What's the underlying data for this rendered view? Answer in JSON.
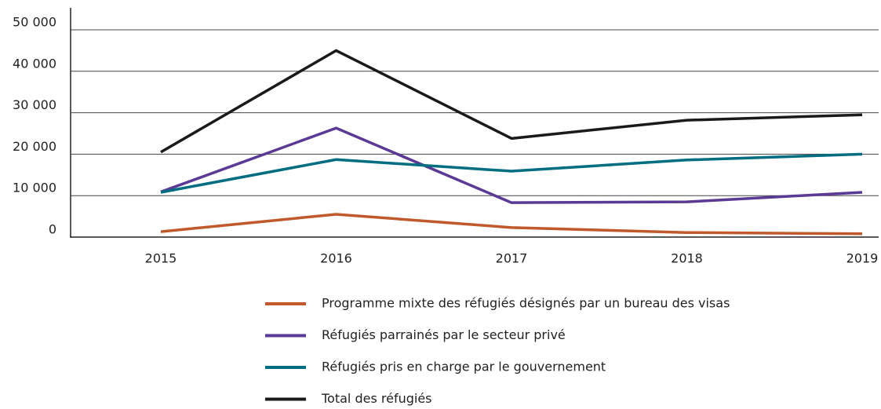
{
  "chart_data": {
    "type": "line",
    "categories": [
      "2015",
      "2016",
      "2017",
      "2018",
      "2019"
    ],
    "series": [
      {
        "name": "Programme mixte des réfugiés désignés par un bureau des visas",
        "color": "#c0592b",
        "values": [
          1300,
          5500,
          2300,
          1100,
          800
        ]
      },
      {
        "name": "Réfugiés parrainés par le secteur privé",
        "color": "#5b3a96",
        "values": [
          10900,
          26300,
          8300,
          8500,
          10800
        ]
      },
      {
        "name": "Réfugiés pris en charge par le gouvernement",
        "color": "#006d80",
        "values": [
          10800,
          18700,
          15900,
          18600,
          20000
        ]
      },
      {
        "name": "Total des réfugiés",
        "color": "#1a1a1a",
        "values": [
          20500,
          45000,
          23800,
          28200,
          29500
        ]
      }
    ],
    "ylim": [
      0,
      50000
    ],
    "yticks": [
      0,
      {
        "value": 10000,
        "label": "10 000"
      },
      {
        "value": 20000,
        "label": "20 000"
      },
      {
        "value": 30000,
        "label": "30 000"
      },
      {
        "value": 40000,
        "label": "40 000"
      },
      {
        "value": 50000,
        "label": "50 000"
      }
    ],
    "grid": true
  }
}
